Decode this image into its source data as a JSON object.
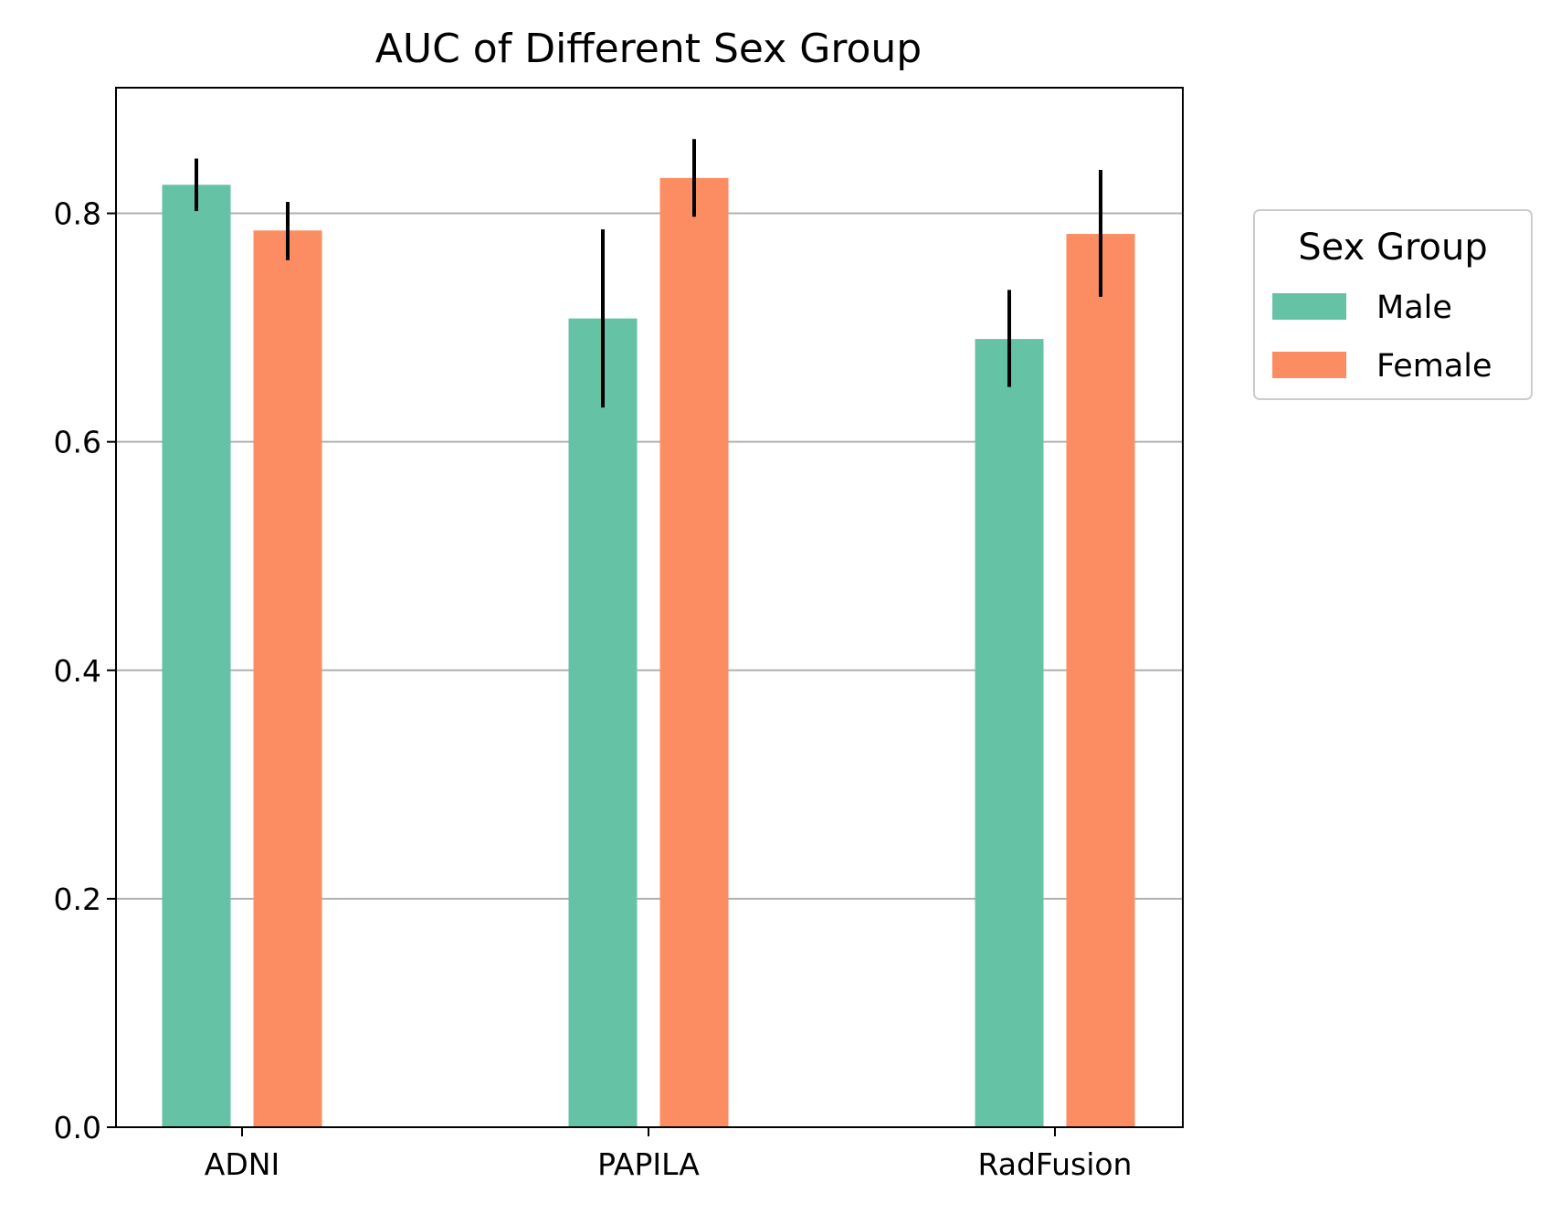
{
  "chart_data": {
    "type": "bar",
    "title": "AUC of Different Sex Group",
    "xlabel": "",
    "ylabel": "",
    "categories": [
      "ADNI",
      "PAPILA",
      "RadFusion"
    ],
    "series": [
      {
        "name": "Male",
        "color": "#66c2a5",
        "values": [
          0.825,
          0.708,
          0.69
        ],
        "err_low": [
          0.802,
          0.63,
          0.648
        ],
        "err_high": [
          0.848,
          0.786,
          0.733
        ]
      },
      {
        "name": "Female",
        "color": "#fc8d62",
        "values": [
          0.785,
          0.831,
          0.782
        ],
        "err_low": [
          0.759,
          0.797,
          0.727
        ],
        "err_high": [
          0.81,
          0.865,
          0.838
        ]
      }
    ],
    "ylim": [
      0,
      0.91
    ],
    "yticks": [
      "0.0",
      "0.2",
      "0.4",
      "0.6",
      "0.8"
    ],
    "grid": "y",
    "legend": {
      "title": "Sex Group",
      "placement": "outside-right"
    }
  }
}
